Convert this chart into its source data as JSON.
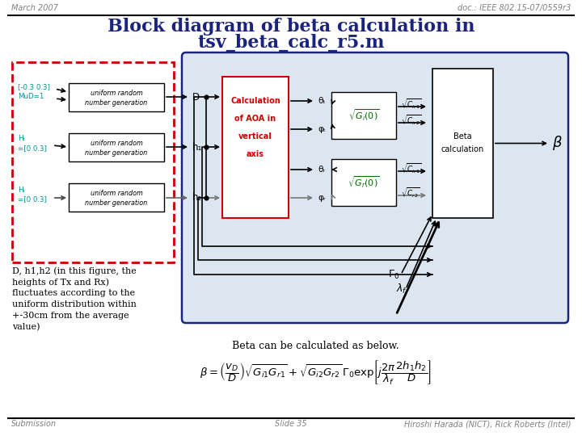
{
  "header_left": "March 2007",
  "header_right": "doc.: IEEE 802.15-07/0559r3",
  "title_line1": "Block diagram of beta calculation in",
  "title_line2": "tsv_beta_calc_r5.m",
  "footer_left": "Submission",
  "footer_center": "Slide 35",
  "footer_right": "Hiroshi Harada (NICT), Rick Roberts (Intel)",
  "bg_color": "#ffffff",
  "header_color": "#808080",
  "title_color": "#1a237e",
  "red_dashed_color": "#cc0000",
  "aoa_box_color": "#cc0000",
  "cyan_text_color": "#009090",
  "green_text_color": "#006600",
  "outer_box_color": "#1a237e",
  "outer_box_fill": "#dce6f1",
  "note_text_line1": "D, h1,h2 (in this figure, the",
  "note_text_line2": "heights of Tx and Rx)",
  "note_text_line3": "fluctuates according to the",
  "note_text_line4": "uniform distribution within",
  "note_text_line5": "+-30cm from the average",
  "note_text_line6": "value)",
  "beta_label": "Beta can be calculated as below."
}
